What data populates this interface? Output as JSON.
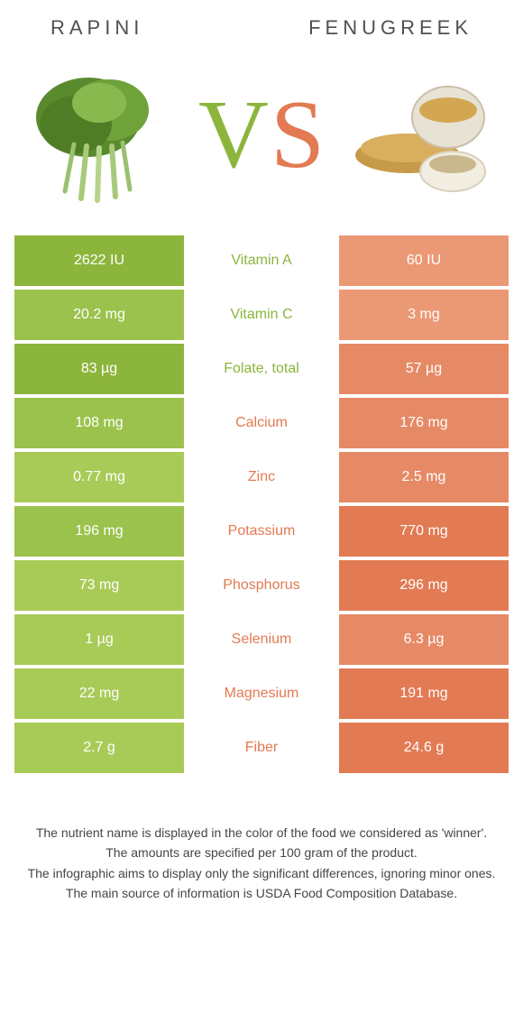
{
  "colors": {
    "left": {
      "dark": "#8cb53c",
      "mid": "#9bc24c",
      "light": "#a8cb58"
    },
    "right": {
      "dark": "#e27a53",
      "mid": "#e68a65",
      "light": "#eb9875"
    },
    "vs_v": "#8cb53c",
    "vs_s": "#e27a53",
    "nutrient_text_left": "#8cb53c",
    "nutrient_text_right": "#e27a53",
    "body_text": "#404040"
  },
  "header": {
    "left_name": "Rapini",
    "right_name": "Fenugreek"
  },
  "vs": {
    "v": "V",
    "s": "S"
  },
  "rows": [
    {
      "left": "2622 IU",
      "nutrient": "Vitamin A",
      "right": "60 IU",
      "winner": "left",
      "left_shade": "dark",
      "right_shade": "light"
    },
    {
      "left": "20.2 mg",
      "nutrient": "Vitamin C",
      "right": "3 mg",
      "winner": "left",
      "left_shade": "mid",
      "right_shade": "light"
    },
    {
      "left": "83 µg",
      "nutrient": "Folate, total",
      "right": "57 µg",
      "winner": "left",
      "left_shade": "dark",
      "right_shade": "mid"
    },
    {
      "left": "108 mg",
      "nutrient": "Calcium",
      "right": "176 mg",
      "winner": "right",
      "left_shade": "mid",
      "right_shade": "mid"
    },
    {
      "left": "0.77 mg",
      "nutrient": "Zinc",
      "right": "2.5 mg",
      "winner": "right",
      "left_shade": "light",
      "right_shade": "mid"
    },
    {
      "left": "196 mg",
      "nutrient": "Potassium",
      "right": "770 mg",
      "winner": "right",
      "left_shade": "mid",
      "right_shade": "dark"
    },
    {
      "left": "73 mg",
      "nutrient": "Phosphorus",
      "right": "296 mg",
      "winner": "right",
      "left_shade": "light",
      "right_shade": "dark"
    },
    {
      "left": "1 µg",
      "nutrient": "Selenium",
      "right": "6.3 µg",
      "winner": "right",
      "left_shade": "light",
      "right_shade": "mid"
    },
    {
      "left": "22 mg",
      "nutrient": "Magnesium",
      "right": "191 mg",
      "winner": "right",
      "left_shade": "light",
      "right_shade": "dark"
    },
    {
      "left": "2.7 g",
      "nutrient": "Fiber",
      "right": "24.6 g",
      "winner": "right",
      "left_shade": "light",
      "right_shade": "dark"
    }
  ],
  "notes": [
    "The nutrient name is displayed in the color of the food we considered as 'winner'.",
    "The amounts are specified per 100 gram of the product.",
    "The infographic aims to display only the significant differences, ignoring minor ones.",
    "The main source of information is USDA Food Composition Database."
  ]
}
